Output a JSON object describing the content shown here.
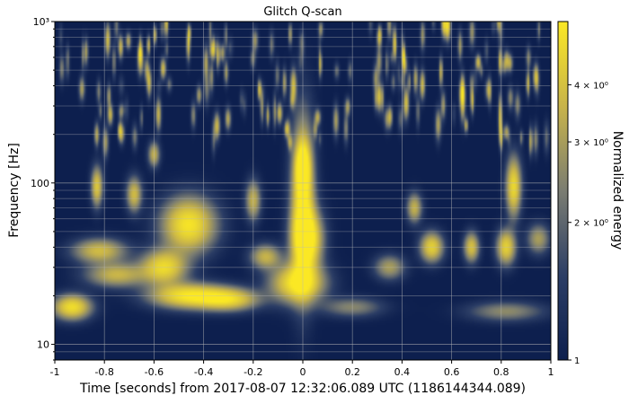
{
  "chart_data": {
    "type": "heatmap",
    "title": "Glitch Q-scan",
    "xlabel": "Time [seconds] from 2017-08-07 12:32:06.089 UTC (1186144344.089)",
    "ylabel": "Frequency [Hz]",
    "colorbar_label": "Normalized energy",
    "x_range": [
      -1,
      1
    ],
    "x_ticks": [
      -1,
      -0.8,
      -0.6,
      -0.4,
      -0.2,
      0,
      0.2,
      0.4,
      0.6,
      0.8,
      1
    ],
    "x_tick_labels": [
      "-1",
      "-0.8",
      "-0.6",
      "-0.4",
      "-0.2",
      "0",
      "0.2",
      "0.4",
      "0.6",
      "0.8",
      "1"
    ],
    "y_scale": "log",
    "y_range": [
      8,
      1000
    ],
    "y_ticks": [
      10,
      100,
      1000
    ],
    "y_tick_labels": [
      "10",
      "100",
      "10³"
    ],
    "color_scale": "log",
    "color_range": [
      1,
      5.5
    ],
    "color_ticks": [
      1,
      2,
      3,
      4
    ],
    "color_tick_labels": [
      "1",
      "2 × 10⁰",
      "3 × 10⁰",
      "4 × 10⁰"
    ],
    "colormap": [
      "#0d1f4e",
      "#2c3e66",
      "#7b7d72",
      "#c8b44a",
      "#fbe824"
    ],
    "grid": true,
    "energy_blobs": [
      {
        "t": 0.0,
        "f": 75,
        "dt": 0.03,
        "dlogf": 0.33,
        "e": 5.5
      },
      {
        "t": 0.0,
        "f": 125,
        "dt": 0.018,
        "dlogf": 0.1,
        "e": 5.0
      },
      {
        "t": 0.02,
        "f": 45,
        "dt": 0.04,
        "dlogf": 0.12,
        "e": 5.2
      },
      {
        "t": -0.02,
        "f": 24,
        "dt": 0.07,
        "dlogf": 0.08,
        "e": 5.3
      },
      {
        "t": -0.46,
        "f": 55,
        "dt": 0.07,
        "dlogf": 0.11,
        "e": 5.3
      },
      {
        "t": -0.56,
        "f": 30,
        "dt": 0.06,
        "dlogf": 0.07,
        "e": 4.8
      },
      {
        "t": -0.46,
        "f": 20,
        "dt": 0.1,
        "dlogf": 0.05,
        "e": 5.2
      },
      {
        "t": -0.3,
        "f": 19,
        "dt": 0.08,
        "dlogf": 0.045,
        "e": 4.5
      },
      {
        "t": -0.93,
        "f": 17,
        "dt": 0.05,
        "dlogf": 0.05,
        "e": 5.0
      },
      {
        "t": -0.82,
        "f": 38,
        "dt": 0.07,
        "dlogf": 0.05,
        "e": 3.8
      },
      {
        "t": -0.75,
        "f": 27,
        "dt": 0.08,
        "dlogf": 0.05,
        "e": 3.6
      },
      {
        "t": -0.83,
        "f": 95,
        "dt": 0.015,
        "dlogf": 0.08,
        "e": 4.2
      },
      {
        "t": -0.68,
        "f": 85,
        "dt": 0.02,
        "dlogf": 0.07,
        "e": 3.8
      },
      {
        "t": -0.2,
        "f": 78,
        "dt": 0.02,
        "dlogf": 0.08,
        "e": 3.5
      },
      {
        "t": 0.52,
        "f": 40,
        "dt": 0.03,
        "dlogf": 0.06,
        "e": 4.5
      },
      {
        "t": 0.85,
        "f": 95,
        "dt": 0.02,
        "dlogf": 0.12,
        "e": 4.8
      },
      {
        "t": 0.82,
        "f": 40,
        "dt": 0.025,
        "dlogf": 0.07,
        "e": 4.5
      },
      {
        "t": 0.68,
        "f": 40,
        "dt": 0.02,
        "dlogf": 0.06,
        "e": 4.0
      },
      {
        "t": 0.35,
        "f": 30,
        "dt": 0.04,
        "dlogf": 0.05,
        "e": 3.0
      },
      {
        "t": 0.2,
        "f": 17,
        "dt": 0.08,
        "dlogf": 0.04,
        "e": 2.5
      },
      {
        "t": 0.82,
        "f": 16,
        "dt": 0.1,
        "dlogf": 0.04,
        "e": 2.6
      },
      {
        "t": 0.95,
        "f": 45,
        "dt": 0.03,
        "dlogf": 0.06,
        "e": 3.0
      },
      {
        "t": -0.15,
        "f": 35,
        "dt": 0.04,
        "dlogf": 0.05,
        "e": 3.5
      },
      {
        "t": -0.6,
        "f": 150,
        "dt": 0.015,
        "dlogf": 0.05,
        "e": 3.5
      },
      {
        "t": 0.45,
        "f": 70,
        "dt": 0.02,
        "dlogf": 0.06,
        "e": 3.5
      }
    ]
  }
}
